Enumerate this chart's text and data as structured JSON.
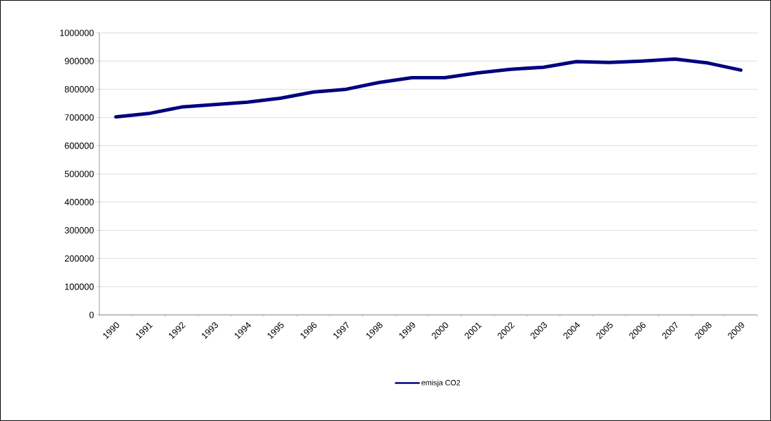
{
  "chart_data": {
    "type": "line",
    "categories": [
      "1990",
      "1991",
      "1992",
      "1993",
      "1994",
      "1995",
      "1996",
      "1997",
      "1998",
      "1999",
      "2000",
      "2001",
      "2002",
      "2003",
      "2004",
      "2005",
      "2006",
      "2007",
      "2008",
      "2009"
    ],
    "series": [
      {
        "name": "emisja CO2",
        "color": "#000080",
        "values": [
          702000,
          714000,
          737000,
          746000,
          754000,
          768000,
          790000,
          800000,
          824000,
          841000,
          841000,
          858000,
          871000,
          878000,
          898000,
          895000,
          900000,
          907000,
          893000,
          868000
        ]
      }
    ],
    "ylim": [
      0,
      1000000
    ],
    "yticks": [
      0,
      100000,
      200000,
      300000,
      400000,
      500000,
      600000,
      700000,
      800000,
      900000,
      1000000
    ],
    "grid": "y",
    "legend": "bottom",
    "marker": "none",
    "line_style": "solid"
  }
}
